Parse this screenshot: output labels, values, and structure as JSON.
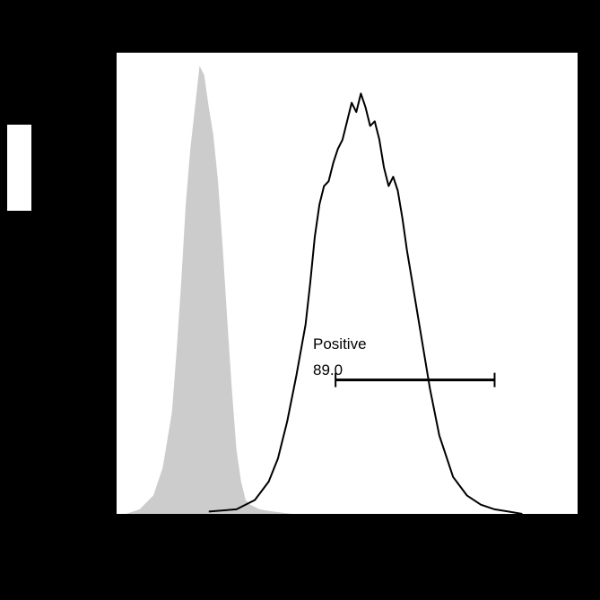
{
  "chart_data": {
    "type": "area",
    "title": "",
    "xlabel": "",
    "ylabel": "",
    "xlim": [
      0,
      100
    ],
    "ylim": [
      0,
      100
    ],
    "grid": false,
    "legend": "none",
    "series": [
      {
        "style": "filled",
        "color": "#cccccc",
        "x": [
          2,
          5,
          8,
          10,
          12,
          13,
          14,
          15,
          16,
          17,
          18,
          19,
          20,
          21,
          22,
          23,
          24,
          25,
          26,
          27,
          28,
          29,
          31,
          34,
          38
        ],
        "y": [
          0,
          1,
          4,
          10,
          22,
          35,
          50,
          67,
          79,
          88,
          97,
          95,
          88,
          82,
          72,
          58,
          42,
          27,
          14,
          7,
          3,
          2,
          1,
          0.5,
          0
        ]
      },
      {
        "style": "outline",
        "color": "#000000",
        "x": [
          20,
          26,
          30,
          33,
          35,
          37,
          39,
          41,
          42,
          43,
          44,
          45,
          46,
          47,
          48,
          49,
          50,
          51,
          52,
          53,
          54,
          55,
          56,
          57,
          58,
          59,
          60,
          61,
          62,
          63,
          64,
          66,
          68,
          70,
          73,
          76,
          79,
          82,
          85,
          88
        ],
        "y": [
          0.5,
          1,
          3,
          7,
          12,
          20,
          30,
          41,
          50,
          60,
          67,
          71,
          72,
          76,
          79,
          81,
          85,
          89,
          87,
          91,
          88,
          84,
          85,
          81,
          75,
          71,
          73,
          70,
          64,
          57,
          51,
          39,
          27,
          17,
          8,
          4,
          2,
          1,
          0.5,
          0
        ]
      }
    ],
    "gates": [
      {
        "label": "Positive",
        "value": "89.0",
        "x_range": [
          47.5,
          82
        ],
        "level": 29
      }
    ]
  }
}
